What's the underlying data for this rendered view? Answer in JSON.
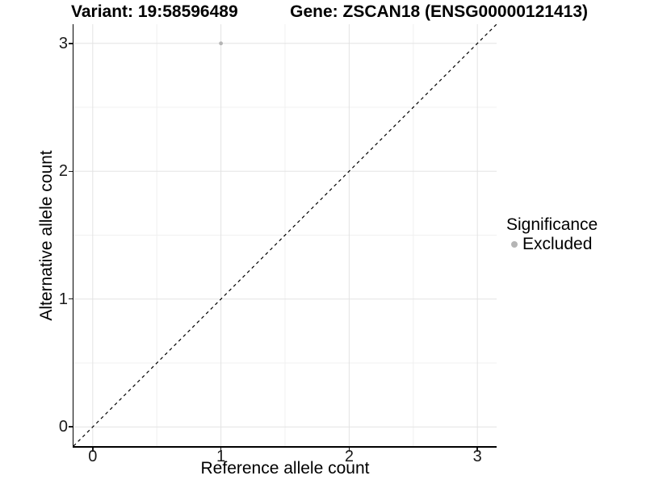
{
  "chart_data": {
    "type": "scatter",
    "title_left": "Variant: 19:58596489",
    "title_right": "Gene: ZSCAN18 (ENSG00000121413)",
    "xlabel": "Reference allele count",
    "ylabel": "Alternative allele count",
    "xlim": [
      -0.15,
      3.15
    ],
    "ylim": [
      -0.15,
      3.15
    ],
    "xticks": [
      0,
      1,
      2,
      3
    ],
    "yticks": [
      0,
      1,
      2,
      3
    ],
    "xticks_minor": [
      0.5,
      1.5,
      2.5
    ],
    "yticks_minor": [
      0.5,
      1.5,
      2.5
    ],
    "grid": {
      "major": true,
      "minor": true
    },
    "reference_line": {
      "kind": "abline",
      "slope": 1,
      "intercept": 0,
      "style": "dashed",
      "color": "#000000"
    },
    "series": [
      {
        "name": "Excluded",
        "color": "#b5b5b5",
        "points": [
          {
            "x": 1,
            "y": 3
          }
        ]
      }
    ],
    "legend": {
      "title": "Significance",
      "position": "right",
      "entries": [
        {
          "label": "Excluded",
          "color": "#b5b5b5"
        }
      ]
    },
    "colors": {
      "grid_major": "#e3e3e3",
      "grid_minor": "#f0f0f0",
      "axis_line": "#000000",
      "tick_text": "#1a1a1a",
      "point": "#b5b5b5"
    }
  }
}
